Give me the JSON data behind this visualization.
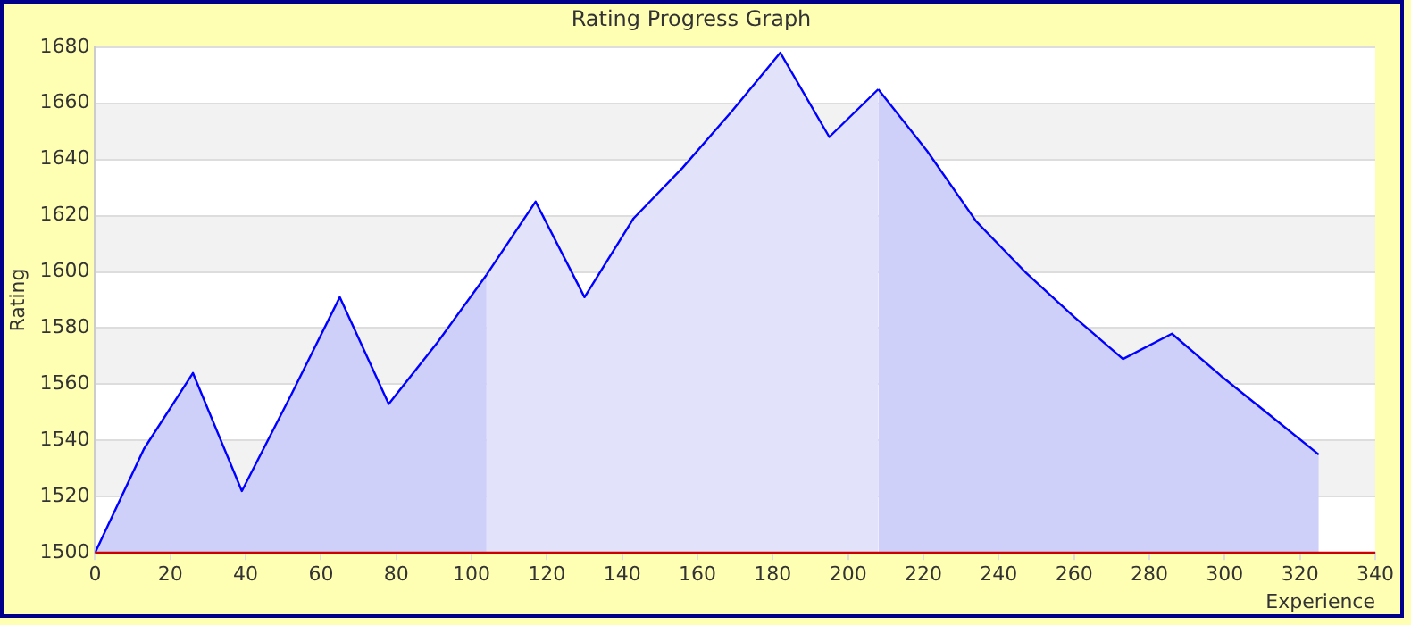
{
  "chart_data": {
    "type": "area",
    "title": "Rating Progress Graph",
    "xlabel": "Experience",
    "ylabel": "Rating",
    "series": [
      {
        "color": "#cfd0fa",
        "x": [
          0,
          13,
          26,
          39,
          52,
          65,
          78,
          91,
          104
        ],
        "values": [
          1500,
          1537,
          1564,
          1522,
          1556,
          1591,
          1553,
          1575,
          1599
        ]
      },
      {
        "color": "#e2e2fa",
        "x": [
          104,
          117,
          130,
          143,
          156,
          169,
          182,
          195,
          208
        ],
        "values": [
          1599,
          1625,
          1591,
          1619,
          1637,
          1657,
          1678,
          1648,
          1665
        ]
      },
      {
        "color": "#cfd0fa",
        "x": [
          208,
          221,
          234,
          247,
          260,
          273,
          286,
          299,
          312,
          325
        ],
        "values": [
          1665,
          1643,
          1618,
          1600,
          1584,
          1569,
          1578,
          1563,
          1549,
          1535
        ]
      }
    ],
    "xlim": [
      0,
      340
    ],
    "xticks": [
      0,
      20,
      40,
      60,
      80,
      100,
      120,
      140,
      160,
      180,
      200,
      220,
      240,
      260,
      280,
      300,
      320,
      340
    ],
    "ylim": [
      1500,
      1680
    ],
    "yticks": [
      1500,
      1520,
      1540,
      1560,
      1580,
      1600,
      1620,
      1640,
      1660,
      1680
    ],
    "grid": "y",
    "legend": false,
    "marker": "none",
    "line_style": "solid"
  }
}
